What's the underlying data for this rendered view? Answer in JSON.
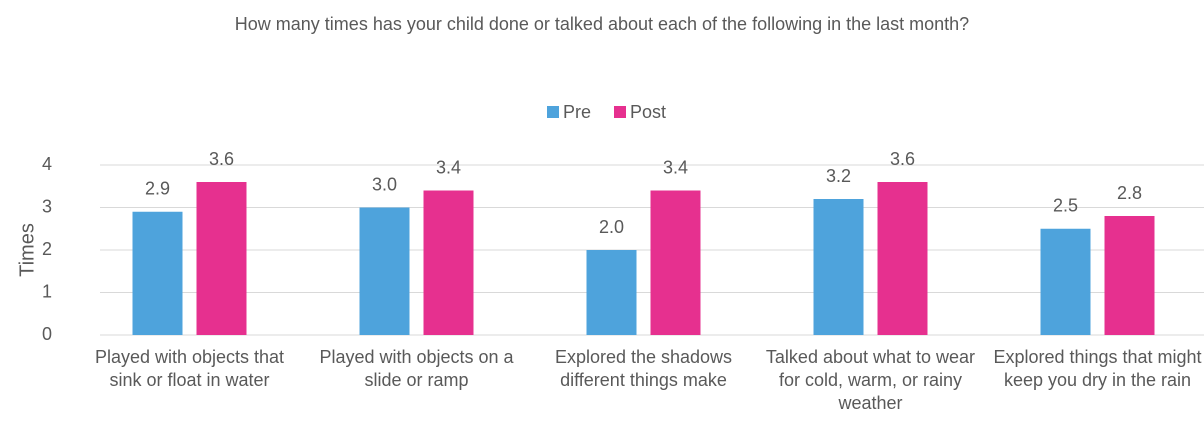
{
  "chart_data": {
    "type": "bar",
    "title": "How many times has your child done or talked about each of the following in the last month?",
    "y_label": "Times",
    "categories": [
      "Played with objects that sink or float in water",
      "Played with objects on a slide or ramp",
      "Explored the shadows different things make",
      "Talked about what to wear for cold, warm, or rainy weather",
      "Explored things that might keep you dry in the rain"
    ],
    "series": [
      {
        "name": "Pre",
        "color": "#4ea3dc",
        "values": [
          2.9,
          3.0,
          2.0,
          3.2,
          2.5
        ],
        "value_labels": [
          "2.9",
          "3.0",
          "2.0",
          "3.2",
          "2.5"
        ]
      },
      {
        "name": "Post",
        "color": "#e6308f",
        "values": [
          3.6,
          3.4,
          3.4,
          3.6,
          2.8
        ],
        "value_labels": [
          "3.6",
          "3.4",
          "3.4",
          "3.6",
          "2.8"
        ]
      }
    ],
    "ylim": [
      0,
      4
    ],
    "yticks": [
      0,
      1,
      2,
      3,
      4
    ],
    "grid": true,
    "legend": "top"
  }
}
